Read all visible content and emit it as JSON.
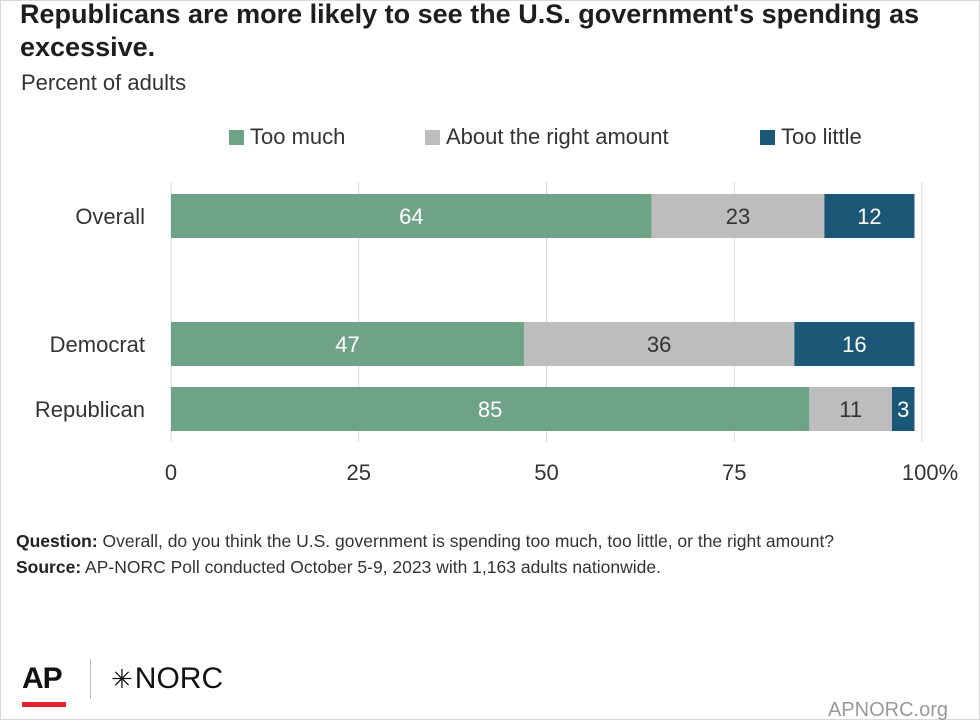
{
  "title": "Republicans are more likely to see the U.S. government's spending as excessive.",
  "subtitle": "Percent of adults",
  "legend": [
    {
      "label": "Too much",
      "color": "#6fa387"
    },
    {
      "label": "About the right amount",
      "color": "#bdbdbd"
    },
    {
      "label": "Too little",
      "color": "#1b5878"
    }
  ],
  "chart_data": {
    "type": "bar",
    "orientation": "horizontal",
    "stacked": true,
    "categories": [
      "Overall",
      "Democrat",
      "Republican"
    ],
    "series": [
      {
        "name": "Too much",
        "values": [
          64,
          47,
          85
        ],
        "color": "#6fa387",
        "label_color": "#ffffff"
      },
      {
        "name": "About the right amount",
        "values": [
          23,
          36,
          11
        ],
        "color": "#bdbdbd",
        "label_color": "#333333"
      },
      {
        "name": "Too little",
        "values": [
          12,
          16,
          3
        ],
        "color": "#1b5878",
        "label_color": "#ffffff"
      }
    ],
    "x_ticks": [
      "0",
      "25",
      "50",
      "75",
      "100%"
    ],
    "xlim": [
      0,
      100
    ],
    "grid": true,
    "legend_position": "top"
  },
  "notes": {
    "question_label": "Question:",
    "question_text": " Overall, do you think the U.S. government is spending too much, too little, or the right amount?",
    "source_label": "Source:",
    "source_text": " AP-NORC Poll conducted October 5-9, 2023 with 1,163 adults nationwide."
  },
  "logos": {
    "ap": "AP",
    "norc": "NORC",
    "norc_mark": "✳"
  },
  "site": "APNORC.org"
}
